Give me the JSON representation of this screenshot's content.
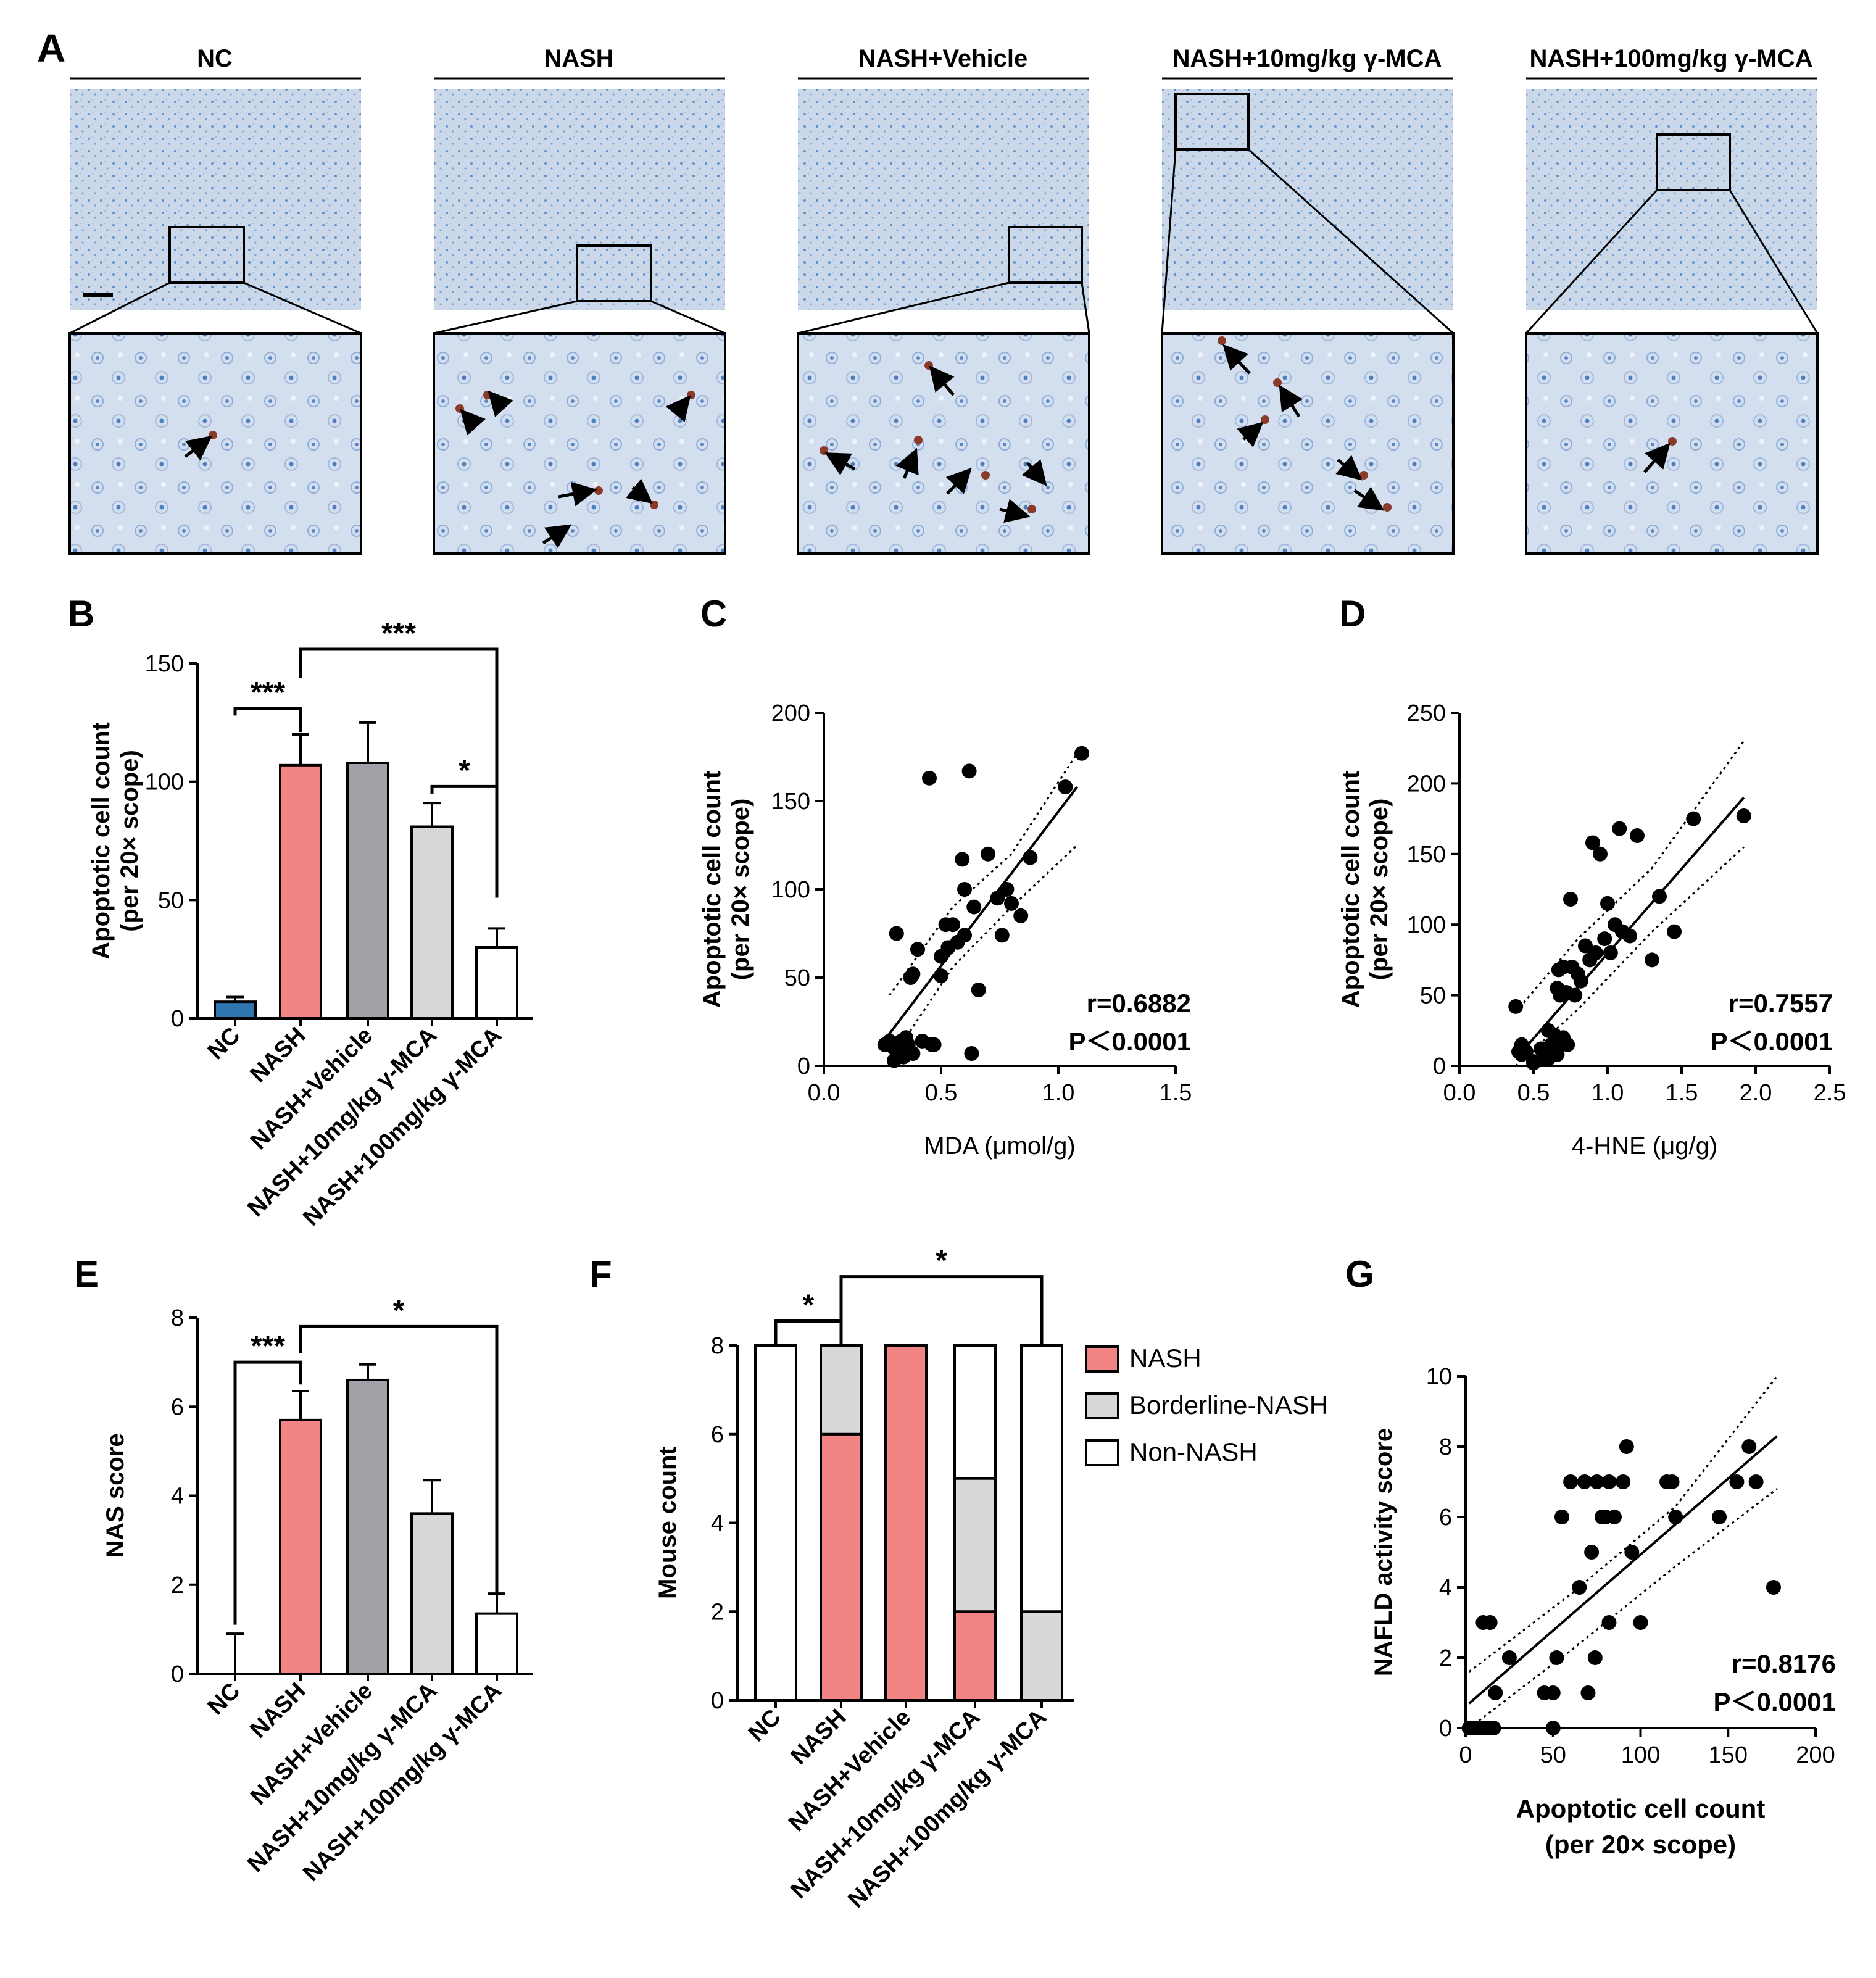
{
  "panels": {
    "A": "A",
    "B": "B",
    "C": "C",
    "D": "D",
    "E": "E",
    "F": "F",
    "G": "G"
  },
  "colors": {
    "NC": "#2f75b0",
    "NASH": "#f28484",
    "NASH+Vehicle": "#a2a1a8",
    "NASH+10mg/kg γ-MCA": "#d8d8d8",
    "NASH+100mg/kg γ-MCA": "#ffffff",
    "tissue_bg": "#cbd9ea",
    "stain_dark": "#8b3a2a",
    "nucleus": "#4a86c6"
  },
  "histology": {
    "groups": [
      "NC",
      "NASH",
      "NASH+Vehicle",
      "NASH+10mg/kg γ-MCA",
      "NASH+100mg/kg γ-MCA"
    ]
  },
  "chart_data": [
    {
      "id": "B",
      "type": "bar",
      "categories": [
        "NC",
        "NASH",
        "NASH+Vehicle",
        "NASH+10mg/kg γ-MCA",
        "NASH+100mg/kg γ-MCA"
      ],
      "values": [
        7,
        107,
        108,
        81,
        30
      ],
      "errors": [
        2,
        13,
        17,
        10,
        8
      ],
      "ylabel": [
        "Apoptotic cell count",
        "(per 20× scope)"
      ],
      "ylim": [
        0,
        150
      ],
      "yticks": [
        0,
        50,
        100,
        150
      ],
      "significance": [
        {
          "from": 0,
          "to": 1,
          "label": "***"
        },
        {
          "from": 1,
          "to": 4,
          "label": "***"
        },
        {
          "from": 3,
          "to": 4,
          "label": "*"
        }
      ]
    },
    {
      "id": "C",
      "type": "scatter",
      "xlabel": "MDA (μmol/g)",
      "ylabel": [
        "Apoptotic cell count",
        "(per 20× scope)"
      ],
      "xlim": [
        0,
        1.5
      ],
      "ylim": [
        0,
        200
      ],
      "xticks": [
        0.0,
        0.5,
        1.0,
        1.5
      ],
      "yticks": [
        0,
        50,
        100,
        150,
        200
      ],
      "stat_r": "r=0.6882",
      "stat_p": "P＜0.0001",
      "fit": {
        "x": [
          0.25,
          1.08
        ],
        "y": [
          13,
          158
        ]
      },
      "band_upper": {
        "x": [
          0.28,
          0.55,
          0.8,
          1.08
        ],
        "y": [
          40,
          90,
          120,
          177
        ]
      },
      "band_lower": {
        "x": [
          0.28,
          0.55,
          0.8,
          1.08
        ],
        "y": [
          2,
          56,
          90,
          125
        ]
      },
      "points": {
        "x": [
          0.26,
          0.28,
          0.3,
          0.31,
          0.32,
          0.33,
          0.34,
          0.35,
          0.36,
          0.37,
          0.38,
          0.3,
          0.33,
          0.35,
          0.38,
          0.42,
          0.45,
          0.47,
          0.5,
          0.52,
          0.53,
          0.55,
          0.57,
          0.6,
          0.62,
          0.64,
          0.66,
          0.7,
          0.74,
          0.76,
          0.78,
          0.8,
          0.84,
          0.88,
          0.59,
          0.63,
          0.6,
          0.5,
          0.4,
          1.03,
          1.1,
          0.46,
          0.34
        ],
        "y": [
          12,
          14,
          10,
          75,
          8,
          14,
          5,
          10,
          12,
          50,
          52,
          3,
          10,
          16,
          7,
          14,
          163,
          12,
          62,
          80,
          67,
          80,
          70,
          74,
          167,
          90,
          43,
          120,
          95,
          74,
          100,
          92,
          85,
          118,
          117,
          7,
          100,
          51,
          66,
          158,
          177,
          12,
          13
        ]
      }
    },
    {
      "id": "D",
      "type": "scatter",
      "xlabel": "4-HNE (μg/g)",
      "ylabel": [
        "Apoptotic cell count",
        "(per 20× scope)"
      ],
      "xlim": [
        0,
        2.5
      ],
      "ylim": [
        0,
        250
      ],
      "xticks": [
        0.0,
        0.5,
        1.0,
        1.5,
        2.0,
        2.5
      ],
      "yticks": [
        0,
        50,
        100,
        150,
        200,
        250
      ],
      "stat_r": "r=0.7557",
      "stat_p": "P＜0.0001",
      "fit": {
        "x": [
          0.38,
          1.92
        ],
        "y": [
          5,
          190
        ]
      },
      "band_upper": {
        "x": [
          0.38,
          0.8,
          1.3,
          1.92
        ],
        "y": [
          38,
          90,
          140,
          230
        ]
      },
      "band_lower": {
        "x": [
          0.38,
          0.8,
          1.3,
          1.92
        ],
        "y": [
          -25,
          40,
          95,
          155
        ]
      },
      "points": {
        "x": [
          0.38,
          0.42,
          0.45,
          0.5,
          0.55,
          0.58,
          0.6,
          0.62,
          0.63,
          0.64,
          0.65,
          0.66,
          0.67,
          0.68,
          0.7,
          0.72,
          0.75,
          0.78,
          0.8,
          0.82,
          0.85,
          0.88,
          0.9,
          0.92,
          0.95,
          0.98,
          1.0,
          1.02,
          1.05,
          1.08,
          1.1,
          1.15,
          1.2,
          1.3,
          1.35,
          1.45,
          1.58,
          1.92,
          0.4,
          0.42,
          0.5,
          0.6,
          0.62,
          0.66,
          0.7,
          0.73,
          0.76
        ],
        "y": [
          42,
          15,
          10,
          3,
          12,
          5,
          25,
          15,
          10,
          22,
          15,
          8,
          68,
          50,
          70,
          52,
          118,
          50,
          65,
          60,
          85,
          75,
          158,
          80,
          150,
          90,
          115,
          80,
          100,
          168,
          95,
          92,
          163,
          75,
          120,
          95,
          175,
          177,
          10,
          8,
          2,
          5,
          12,
          55,
          20,
          15,
          70
        ]
      }
    },
    {
      "id": "E",
      "type": "bar",
      "categories": [
        "NC",
        "NASH",
        "NASH+Vehicle",
        "NASH+10mg/kg γ-MCA",
        "NASH+100mg/kg γ-MCA"
      ],
      "values": [
        0,
        5.7,
        6.6,
        3.6,
        1.35
      ],
      "errors": [
        0.9,
        0.65,
        0.35,
        0.75,
        0.45
      ],
      "ylabel": [
        "NAS score"
      ],
      "ylim": [
        0,
        8
      ],
      "yticks": [
        0,
        2,
        4,
        6,
        8
      ],
      "significance": [
        {
          "from": 0,
          "to": 1,
          "label": "***"
        },
        {
          "from": 1,
          "to": 4,
          "label": "*"
        }
      ]
    },
    {
      "id": "F",
      "type": "bar",
      "stacked": true,
      "categories": [
        "NC",
        "NASH",
        "NASH+Vehicle",
        "NASH+10mg/kg γ-MCA",
        "NASH+100mg/kg γ-MCA"
      ],
      "series": [
        {
          "name": "NASH",
          "values": [
            0,
            6,
            8,
            2,
            0
          ],
          "color": "#f28484"
        },
        {
          "name": "Borderline-NASH",
          "values": [
            0,
            2,
            0,
            3,
            2
          ],
          "color": "#d8d8d8"
        },
        {
          "name": "Non-NASH",
          "values": [
            8,
            0,
            0,
            3,
            6
          ],
          "color": "#ffffff"
        }
      ],
      "ylabel": [
        "Mouse count"
      ],
      "ylim": [
        0,
        8
      ],
      "yticks": [
        0,
        2,
        4,
        6,
        8
      ],
      "legend_position": "right",
      "significance": [
        {
          "from": 0,
          "to": 1,
          "label": "*"
        },
        {
          "from": 1,
          "to": 4,
          "label": "*"
        }
      ]
    },
    {
      "id": "G",
      "type": "scatter",
      "xlabel": [
        "Apoptotic cell count",
        "(per 20× scope)"
      ],
      "ylabel": [
        "NAFLD activity score"
      ],
      "xlim": [
        0,
        200
      ],
      "ylim": [
        0,
        10
      ],
      "xticks": [
        0,
        50,
        100,
        150,
        200
      ],
      "yticks": [
        0,
        2,
        4,
        6,
        8,
        10
      ],
      "stat_r": "r=0.8176",
      "stat_p": "P＜0.0001",
      "fit": {
        "x": [
          2,
          178
        ],
        "y": [
          0.7,
          8.3
        ]
      },
      "band_upper": {
        "x": [
          2,
          60,
          120,
          178
        ],
        "y": [
          1.6,
          3.8,
          6.3,
          10.1
        ]
      },
      "band_lower": {
        "x": [
          2,
          60,
          120,
          178
        ],
        "y": [
          -0.2,
          2.2,
          4.6,
          6.8
        ]
      },
      "points": {
        "x": [
          2,
          4,
          6,
          8,
          10,
          12,
          14,
          16,
          10,
          14,
          17,
          25,
          45,
          50,
          55,
          60,
          52,
          50,
          65,
          68,
          72,
          75,
          78,
          80,
          82,
          85,
          90,
          92,
          95,
          100,
          115,
          118,
          120,
          145,
          155,
          162,
          166,
          176,
          70,
          74,
          82
        ],
        "y": [
          0,
          0,
          0,
          0,
          0,
          0,
          0,
          0,
          3,
          3,
          1,
          2,
          1,
          1,
          6,
          7,
          2,
          0,
          4,
          7,
          5,
          7,
          6,
          6,
          7,
          6,
          7,
          8,
          5,
          3,
          7,
          7,
          6,
          6,
          7,
          8,
          7,
          4,
          1,
          2,
          3
        ]
      }
    }
  ]
}
